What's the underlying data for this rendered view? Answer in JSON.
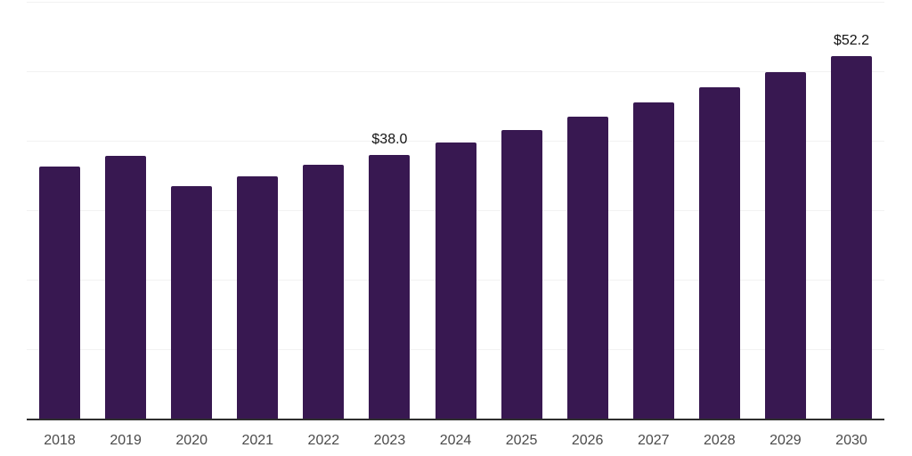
{
  "chart_data": {
    "type": "bar",
    "title": "",
    "xlabel": "",
    "ylabel": "",
    "categories": [
      "2018",
      "2019",
      "2020",
      "2021",
      "2022",
      "2023",
      "2024",
      "2025",
      "2026",
      "2027",
      "2028",
      "2029",
      "2030"
    ],
    "values": [
      36.3,
      37.8,
      33.5,
      34.9,
      36.5,
      38.0,
      39.7,
      41.6,
      43.5,
      45.5,
      47.7,
      49.9,
      52.2
    ],
    "bar_labels": [
      "",
      "",
      "",
      "",
      "",
      "$38.0",
      "",
      "",
      "",
      "",
      "",
      "",
      "$52.2"
    ],
    "ylim": [
      0,
      60
    ],
    "gridline_values": [
      10,
      20,
      30,
      40,
      50,
      60
    ],
    "grid": true,
    "legend_position": "none",
    "y_axis_labels_visible": false,
    "colors": {
      "bar": "#381851",
      "grid": "#f2f2f2",
      "axis": "#2e2e2e",
      "tick_label": "#4b4b4b",
      "data_label": "#141414",
      "background": "#ffffff"
    }
  }
}
